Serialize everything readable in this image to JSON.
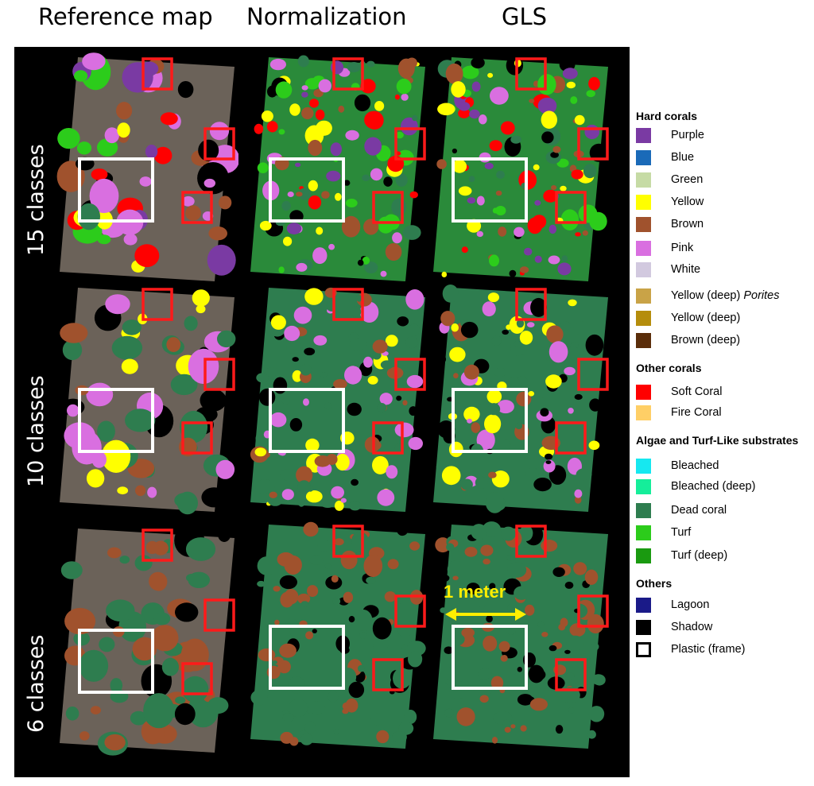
{
  "column_titles": [
    "Reference map",
    "Normalization",
    "GLS"
  ],
  "row_labels": [
    "15 classes",
    "10 classes",
    "6 classes"
  ],
  "scale_label": "1 meter",
  "legend": {
    "groups": [
      {
        "title": "Hard corals",
        "items": [
          {
            "label": "Purple",
            "color": "#7a3aa3"
          },
          {
            "label": "Blue",
            "color": "#1a6ab8"
          },
          {
            "label": "Green",
            "color": "#c6dba5"
          },
          {
            "label": "Yellow",
            "color": "#ffff00"
          },
          {
            "label": "Brown",
            "color": "#a0522d"
          },
          {
            "label": "Pink",
            "color": "#d96fe0"
          },
          {
            "label": "White",
            "color": "#d2c9df"
          },
          {
            "label": "Yellow  (deep) ",
            "label_italic": "Porites",
            "color": "#c9a347"
          },
          {
            "label": "Yellow (deep)",
            "color": "#b58d0c"
          },
          {
            "label": "Brown (deep)",
            "color": "#5a2d0a"
          }
        ]
      },
      {
        "title": "Other corals",
        "items": [
          {
            "label": "Soft Coral",
            "color": "#ff0000"
          },
          {
            "label": "Fire Coral",
            "color": "#ffcf66"
          }
        ]
      },
      {
        "title": "Algae and Turf-Like substrates",
        "items": [
          {
            "label": "Bleached",
            "color": "#16e8f0"
          },
          {
            "label": "Bleached (deep)",
            "color": "#15ee9a"
          },
          {
            "label": "Dead coral",
            "color": "#2e7d4f"
          },
          {
            "label": "Turf",
            "color": "#2ccc1b"
          },
          {
            "label": "Turf (deep)",
            "color": "#1a9a10"
          }
        ]
      },
      {
        "title": "Others",
        "items": [
          {
            "label": "Lagoon",
            "color": "#1a1a88"
          },
          {
            "label": "Shadow",
            "color": "#000000"
          },
          {
            "label": "Plastic (frame)",
            "color": "#ffffff",
            "outline": true
          }
        ]
      }
    ]
  }
}
